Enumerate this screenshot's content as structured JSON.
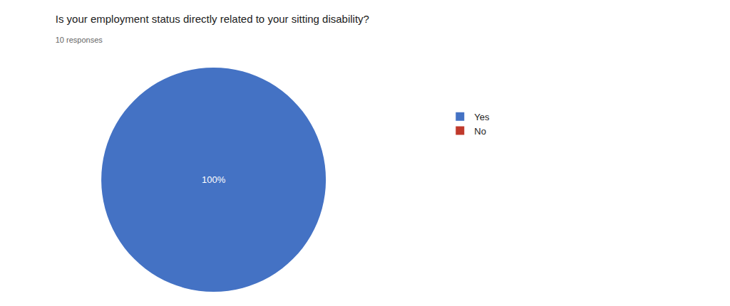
{
  "chart_data": {
    "type": "pie",
    "title": "Is your employment status directly related to your sitting disability?",
    "subtitle": "10 responses",
    "categories": [
      "Yes",
      "No"
    ],
    "values": [
      100,
      0.0001
    ],
    "colors": [
      "#4472c4",
      "#c0392b"
    ],
    "annotations": [
      {
        "text": "100%"
      }
    ],
    "legend": "right"
  }
}
